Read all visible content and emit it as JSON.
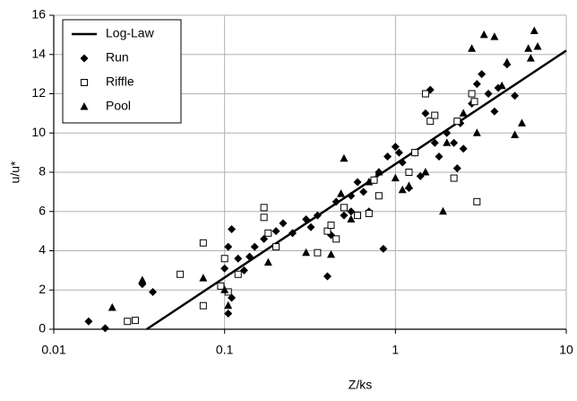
{
  "chart_data": {
    "type": "scatter",
    "x_label": "Z/ks",
    "y_label": "u/u*",
    "xscale": "log",
    "grid": true,
    "legend": "upper left",
    "xlim": [
      0.01,
      10
    ],
    "xticks": [
      0.01,
      0.1,
      1,
      10
    ],
    "ylim": [
      0,
      16
    ],
    "yticks": [
      0,
      2,
      4,
      6,
      8,
      10,
      12,
      14,
      16
    ],
    "series": [
      {
        "name": "Log-Law",
        "kind": "line",
        "color": "#000000",
        "x": [
          0.035,
          10
        ],
        "values": [
          0,
          14.2
        ]
      },
      {
        "name": "Run",
        "kind": "points",
        "marker": "diamond",
        "color": "#000000",
        "x": [
          0.016,
          0.02,
          0.033,
          0.038,
          0.1,
          0.105,
          0.11,
          0.11,
          0.105,
          0.13,
          0.14,
          0.15,
          0.17,
          0.2,
          0.22,
          0.25,
          0.3,
          0.35,
          0.4,
          0.42,
          0.45,
          0.5,
          0.55,
          0.6,
          0.65,
          0.7,
          0.8,
          0.85,
          0.9,
          1.0,
          1.1,
          1.2,
          1.3,
          1.4,
          1.5,
          1.6,
          1.7,
          1.8,
          2.0,
          2.2,
          2.4,
          2.5,
          2.8,
          3.0,
          3.2,
          3.5,
          4.0,
          4.5,
          5.0,
          1.05,
          0.75,
          0.55,
          0.32,
          0.12,
          2.3,
          3.8
        ],
        "values": [
          0.4,
          0.05,
          2.3,
          1.9,
          3.1,
          4.2,
          5.1,
          1.6,
          0.8,
          3.0,
          3.7,
          4.2,
          4.6,
          5.0,
          5.4,
          4.9,
          5.6,
          5.8,
          2.7,
          4.8,
          6.5,
          5.8,
          6.8,
          7.5,
          7.0,
          6.0,
          8.0,
          4.1,
          8.8,
          9.3,
          8.5,
          7.2,
          9.0,
          7.8,
          11.0,
          12.2,
          9.5,
          8.8,
          10.0,
          9.5,
          10.5,
          9.2,
          11.5,
          12.5,
          13.0,
          12.0,
          12.3,
          13.5,
          11.9,
          9.0,
          7.6,
          6.0,
          5.2,
          3.6,
          8.2,
          11.1
        ]
      },
      {
        "name": "Riffle",
        "kind": "points",
        "marker": "square",
        "color": "#000000",
        "x": [
          0.027,
          0.03,
          0.055,
          0.075,
          0.075,
          0.095,
          0.1,
          0.105,
          0.12,
          0.17,
          0.17,
          0.18,
          0.2,
          0.35,
          0.4,
          0.45,
          0.5,
          0.6,
          0.7,
          0.75,
          0.8,
          1.2,
          1.5,
          1.6,
          1.7,
          2.2,
          2.3,
          2.8,
          2.9,
          3.0,
          1.3,
          0.42
        ],
        "values": [
          0.4,
          0.45,
          2.8,
          4.4,
          1.2,
          2.2,
          3.6,
          1.9,
          2.8,
          6.2,
          5.7,
          4.9,
          4.2,
          3.9,
          5.0,
          4.6,
          6.2,
          5.8,
          5.9,
          7.6,
          6.8,
          8.0,
          12.0,
          10.6,
          10.9,
          7.7,
          10.6,
          12.0,
          11.6,
          6.5,
          9.0,
          5.3
        ]
      },
      {
        "name": "Pool",
        "kind": "points",
        "marker": "triangle",
        "color": "#000000",
        "x": [
          0.022,
          0.033,
          0.075,
          0.1,
          0.105,
          0.18,
          0.3,
          0.42,
          0.5,
          0.48,
          0.55,
          0.7,
          0.8,
          1.0,
          1.1,
          1.2,
          1.5,
          1.9,
          2.0,
          2.5,
          2.8,
          3.0,
          3.3,
          3.8,
          4.2,
          4.5,
          5.0,
          5.5,
          6.0,
          6.2,
          6.5,
          6.8
        ],
        "values": [
          1.1,
          2.5,
          2.6,
          2.0,
          1.2,
          3.4,
          3.9,
          3.8,
          8.7,
          6.9,
          5.6,
          7.5,
          8.0,
          7.7,
          7.1,
          7.3,
          8.0,
          6.0,
          9.5,
          11.0,
          14.3,
          10.0,
          15.0,
          14.9,
          12.4,
          13.6,
          9.9,
          10.5,
          14.3,
          13.8,
          15.2,
          14.4
        ]
      }
    ]
  }
}
